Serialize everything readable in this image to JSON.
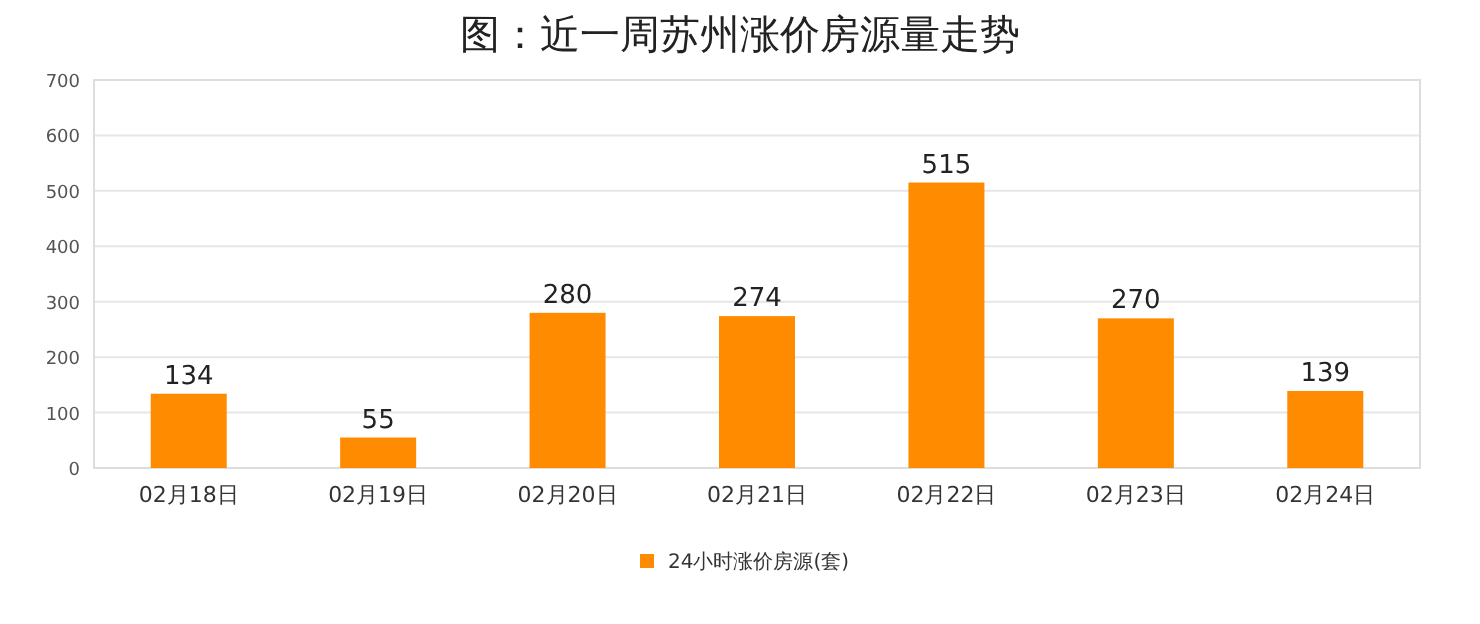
{
  "chart_data": {
    "type": "bar",
    "title": "图：近一周苏州涨价房源量走势",
    "categories": [
      "02月18日",
      "02月19日",
      "02月20日",
      "02月21日",
      "02月22日",
      "02月23日",
      "02月24日"
    ],
    "series": [
      {
        "name": "24小时涨价房源(套)",
        "color": "#ff8c00",
        "values": [
          134,
          55,
          280,
          274,
          515,
          270,
          139
        ]
      }
    ],
    "ylim": [
      0,
      700
    ],
    "yticks": [
      0,
      100,
      200,
      300,
      400,
      500,
      600,
      700
    ],
    "grid": "y",
    "legend": "bottom",
    "data_labels": true
  }
}
